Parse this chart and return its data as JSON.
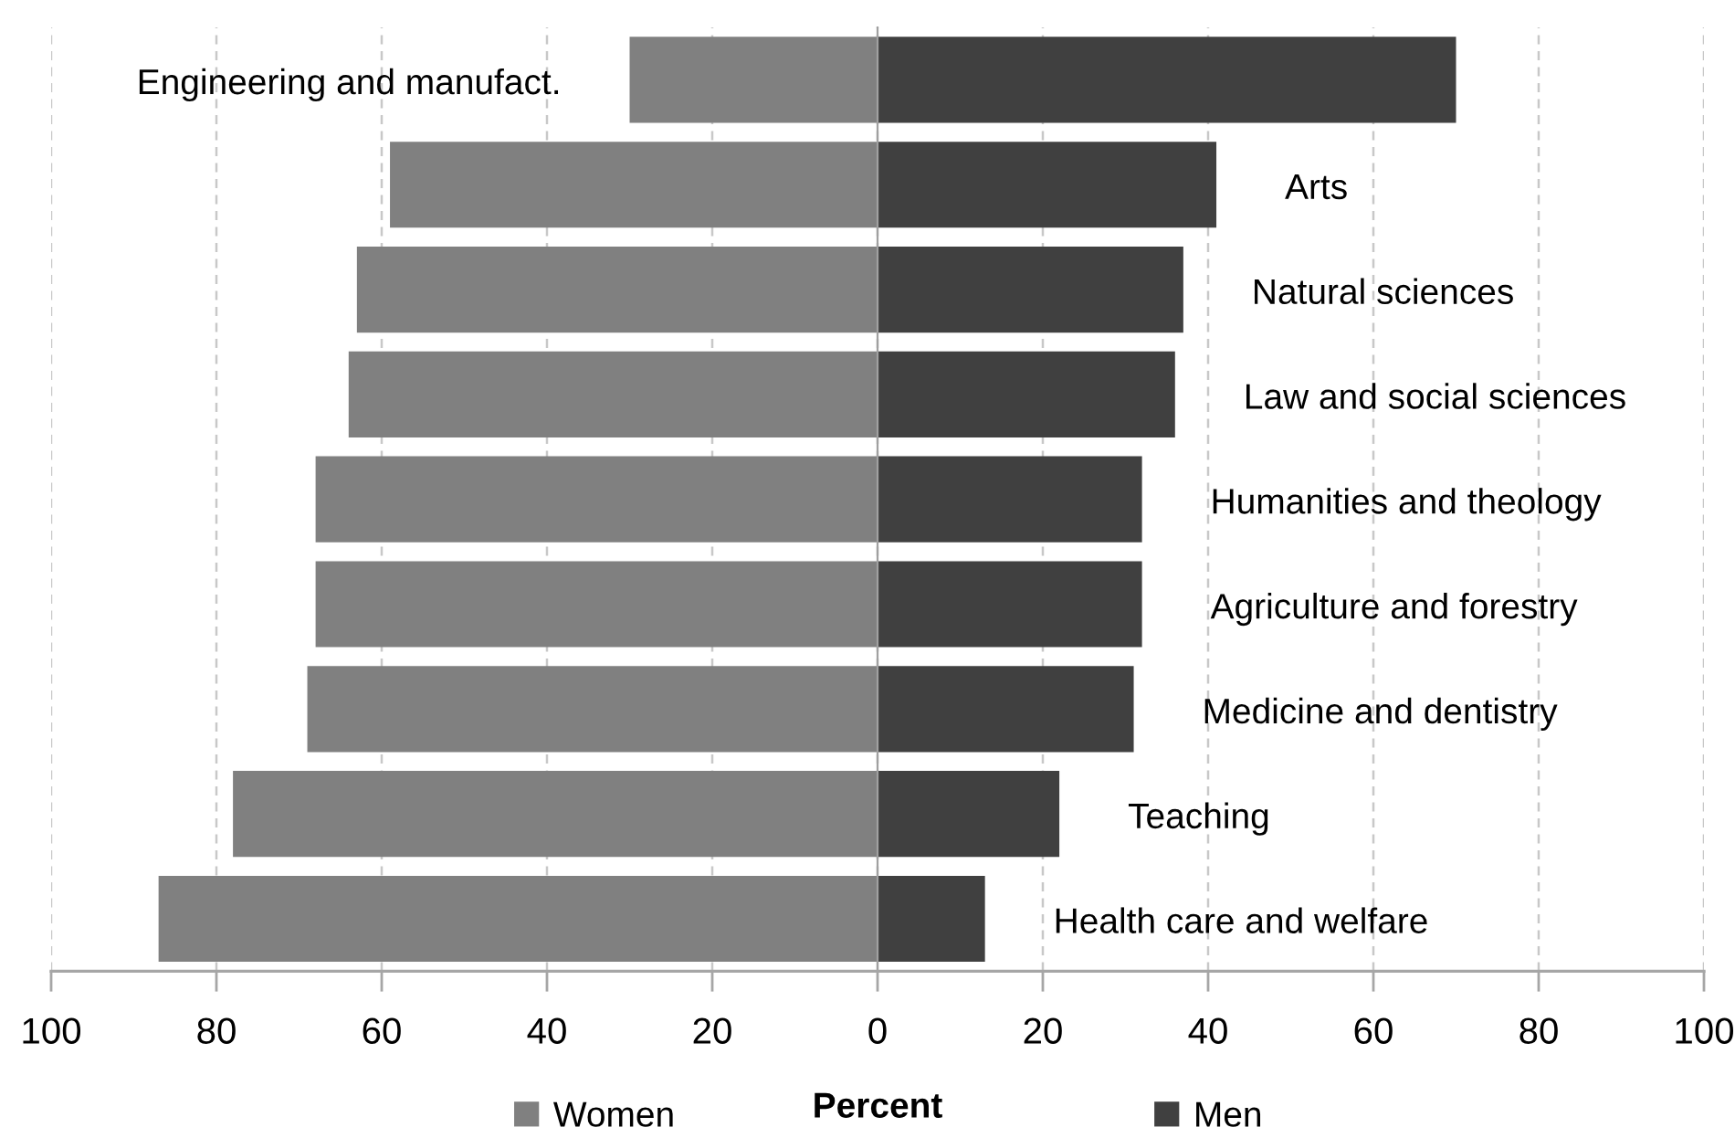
{
  "chart_data": {
    "type": "bar",
    "orientation": "horizontal",
    "stacked": true,
    "categories": [
      "Engineering and manufact.",
      "Arts",
      "Natural sciences",
      "Law and social sciences",
      "Humanities and theology",
      "Agriculture and forestry",
      "Medicine and dentistry",
      "Teaching",
      "Health care and welfare"
    ],
    "series": [
      {
        "name": "Women",
        "color": "#808080",
        "values": [
          -30,
          -59,
          -63,
          -64,
          -68,
          -68,
          -69,
          -78,
          -87
        ]
      },
      {
        "name": "Men",
        "color": "#404040",
        "values": [
          70,
          41,
          37,
          36,
          32,
          32,
          31,
          22,
          13
        ]
      }
    ],
    "xlabel": "Percent",
    "xlim": [
      -100,
      100
    ],
    "xticks": [
      {
        "value": -100,
        "label": "100"
      },
      {
        "value": -80,
        "label": "80"
      },
      {
        "value": -60,
        "label": "60"
      },
      {
        "value": -40,
        "label": "40"
      },
      {
        "value": -20,
        "label": "20"
      },
      0,
      20,
      40,
      60,
      80,
      100
    ],
    "grid": "x",
    "legend": "bottom"
  }
}
